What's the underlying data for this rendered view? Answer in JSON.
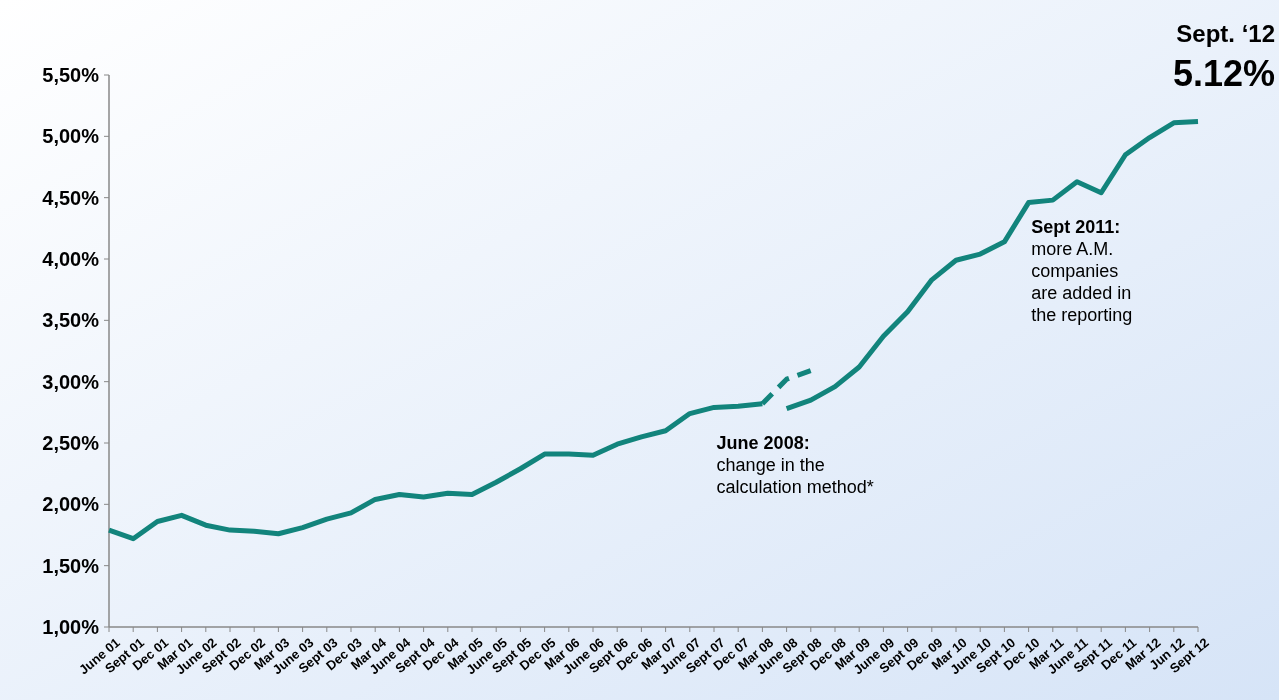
{
  "chart_data": {
    "type": "line",
    "categories": [
      "June 01",
      "Sept 01",
      "Dec 01",
      "Mar 01",
      "June 02",
      "Sept 02",
      "Dec 02",
      "Mar 03",
      "June 03",
      "Sept 03",
      "Dec 03",
      "Mar 04",
      "June 04",
      "Sept 04",
      "Dec 04",
      "Mar 05",
      "June 05",
      "Sept 05",
      "Dec 05",
      "Mar 06",
      "June 06",
      "Sept 06",
      "Dec 06",
      "Mar 07",
      "June 07",
      "Sept 07",
      "Dec 07",
      "Mar 08",
      "June 08",
      "Sept 08",
      "Dec 08",
      "Mar 09",
      "June 09",
      "Sept 09",
      "Dec 09",
      "Mar 10",
      "June 10",
      "Sept 10",
      "Dec 10",
      "Mar 11",
      "June 11",
      "Sept 11",
      "Dec 11",
      "Mar 12",
      "Jun 12",
      "Sept 12"
    ],
    "series": [
      {
        "color": "#12847c",
        "line_style": "solid",
        "values": [
          1.79,
          1.72,
          1.86,
          1.91,
          1.83,
          1.79,
          1.78,
          1.76,
          1.81,
          1.88,
          1.93,
          2.04,
          2.08,
          2.06,
          2.09,
          2.08,
          2.18,
          2.29,
          2.41,
          2.41,
          2.4,
          2.49,
          2.55,
          2.6,
          2.74,
          2.79,
          2.8,
          2.82,
          null,
          null,
          null,
          null,
          null,
          null,
          null,
          null,
          null,
          null,
          null,
          null,
          null,
          null,
          null,
          null,
          null,
          null
        ]
      },
      {
        "color": "#12847c",
        "line_style": "dashed",
        "values": [
          null,
          null,
          null,
          null,
          null,
          null,
          null,
          null,
          null,
          null,
          null,
          null,
          null,
          null,
          null,
          null,
          null,
          null,
          null,
          null,
          null,
          null,
          null,
          null,
          null,
          null,
          null,
          2.82,
          3.02,
          3.09,
          null,
          null,
          null,
          null,
          null,
          null,
          null,
          null,
          null,
          null,
          null,
          null,
          null,
          null,
          null,
          null
        ]
      },
      {
        "color": "#12847c",
        "line_style": "solid",
        "values": [
          null,
          null,
          null,
          null,
          null,
          null,
          null,
          null,
          null,
          null,
          null,
          null,
          null,
          null,
          null,
          null,
          null,
          null,
          null,
          null,
          null,
          null,
          null,
          null,
          null,
          null,
          null,
          null,
          2.78,
          2.85,
          2.96,
          3.12,
          3.37,
          3.57,
          3.83,
          3.99,
          4.04,
          4.14,
          4.46,
          4.48,
          4.63,
          4.54,
          4.85,
          4.99,
          5.11,
          5.12
        ]
      }
    ],
    "ylim": [
      1,
      5.5
    ],
    "yticks": [
      {
        "value": 1,
        "label": "1,00%"
      },
      {
        "value": 1.5,
        "label": "1,50%"
      },
      {
        "value": 2,
        "label": "2,00%"
      },
      {
        "value": 2.5,
        "label": "2,50%"
      },
      {
        "value": 3,
        "label": "3,00%"
      },
      {
        "value": 3.5,
        "label": "3,50%"
      },
      {
        "value": 4,
        "label": "4,00%"
      },
      {
        "value": 4.5,
        "label": "4,50%"
      },
      {
        "value": 5,
        "label": "5,00%"
      },
      {
        "value": 5.5,
        "label": "5,50%"
      }
    ],
    "grid": false,
    "marker": "none",
    "annotations": [
      {
        "text": "Sept. ‘12\n5.12%",
        "x": "Sept 12",
        "y": 5.12
      },
      {
        "text": "June 2008:\nchange in the\ncalculation method*",
        "x": "June 08",
        "y": 2.78
      },
      {
        "text": "Sept 2011:\nmore A.M.\ncompanies\nare added in\nthe reporting",
        "x": "Sept 11",
        "y": 4.54
      }
    ]
  }
}
